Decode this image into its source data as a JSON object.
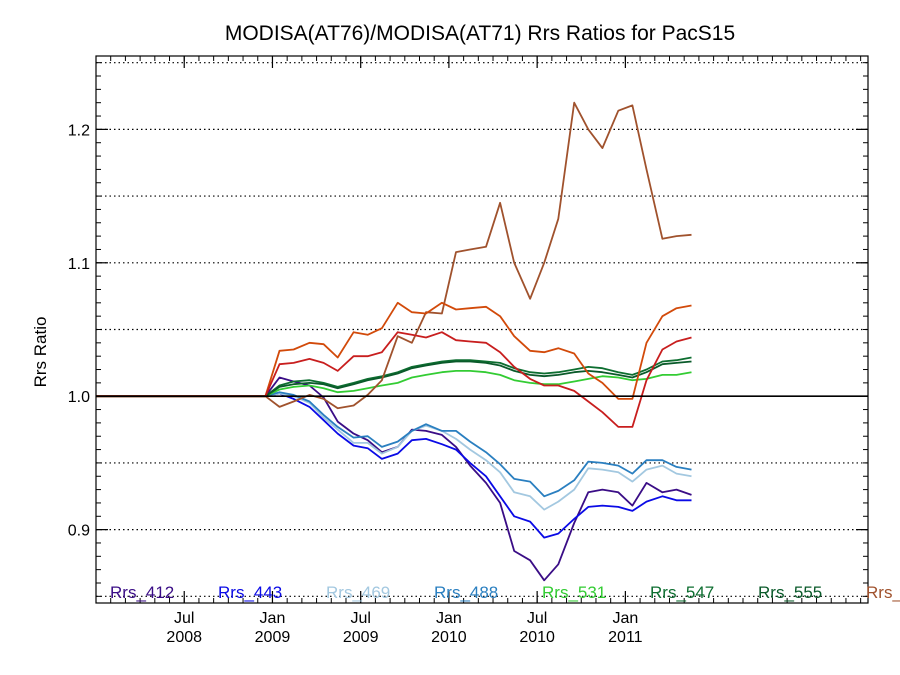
{
  "chart_data": {
    "type": "line",
    "title": "MODISA(AT76)/MODISA(AT71)  Rrs Ratios for PacS15",
    "xlabel": "",
    "ylabel": "Rrs Ratio",
    "xlim": [
      2007.0,
      2011.375
    ],
    "ylim": [
      0.845,
      1.255
    ],
    "x_ticks": [
      {
        "value": 2007.5,
        "month": "Jul",
        "year": "2008"
      },
      {
        "value": 2008.0,
        "month": "Jan",
        "year": "2009"
      },
      {
        "value": 2008.5,
        "month": "Jul",
        "year": "2009"
      },
      {
        "value": 2009.0,
        "month": "Jan",
        "year": "2010"
      },
      {
        "value": 2009.5,
        "month": "Jul",
        "year": "2010"
      },
      {
        "value": 2010.0,
        "month": "Jan",
        "year": "2011"
      }
    ],
    "y_ticks": [
      {
        "value": 0.9,
        "label": "0.9"
      },
      {
        "value": 1.0,
        "label": "1.0"
      },
      {
        "value": 1.1,
        "label": "1.1"
      },
      {
        "value": 1.2,
        "label": "1.2"
      }
    ],
    "gridlines_dotted": [
      0.85,
      0.9,
      0.95,
      1.05,
      1.1,
      1.15,
      1.2,
      1.25
    ],
    "reference_line": 1.0,
    "legend_placement": "bottom",
    "x_start": 2007.0,
    "x_flat_end": 2007.96,
    "x": [
      2007.96,
      2008.04,
      2008.12,
      2008.21,
      2008.29,
      2008.37,
      2008.46,
      2008.54,
      2008.62,
      2008.71,
      2008.79,
      2008.87,
      2008.96,
      2009.04,
      2009.12,
      2009.21,
      2009.29,
      2009.37,
      2009.46,
      2009.54,
      2009.62,
      2009.71,
      2009.79,
      2009.87,
      2009.96,
      2010.04,
      2010.12,
      2010.21,
      2010.29,
      2010.375
    ],
    "series": [
      {
        "name": "Rrs_412",
        "color": "#3a0d86",
        "values": [
          1.0,
          1.014,
          1.011,
          1.008,
          0.999,
          0.981,
          0.972,
          0.967,
          0.958,
          0.962,
          0.975,
          0.974,
          0.971,
          0.962,
          0.948,
          0.935,
          0.92,
          0.884,
          0.877,
          0.862,
          0.874,
          0.905,
          0.928,
          0.93,
          0.928,
          0.918,
          0.935,
          0.928,
          0.93,
          0.926
        ]
      },
      {
        "name": "Rrs_443",
        "color": "#0a0ae6",
        "values": [
          1.0,
          1.002,
          0.998,
          0.992,
          0.982,
          0.972,
          0.963,
          0.961,
          0.953,
          0.957,
          0.967,
          0.968,
          0.964,
          0.96,
          0.95,
          0.94,
          0.925,
          0.91,
          0.906,
          0.894,
          0.897,
          0.908,
          0.917,
          0.918,
          0.917,
          0.914,
          0.921,
          0.925,
          0.922,
          0.922
        ]
      },
      {
        "name": "Rrs_469",
        "color": "#a3c8e0",
        "values": [
          1.0,
          1.002,
          1.0,
          0.995,
          0.984,
          0.975,
          0.965,
          0.965,
          0.957,
          0.962,
          0.974,
          0.978,
          0.974,
          0.968,
          0.96,
          0.952,
          0.943,
          0.928,
          0.925,
          0.915,
          0.921,
          0.93,
          0.946,
          0.945,
          0.943,
          0.936,
          0.945,
          0.948,
          0.942,
          0.94
        ]
      },
      {
        "name": "Rrs_488",
        "color": "#2a7fc0",
        "values": [
          1.0,
          1.003,
          1.001,
          0.996,
          0.986,
          0.977,
          0.969,
          0.97,
          0.962,
          0.966,
          0.974,
          0.979,
          0.974,
          0.974,
          0.966,
          0.958,
          0.949,
          0.938,
          0.936,
          0.925,
          0.929,
          0.937,
          0.951,
          0.95,
          0.948,
          0.942,
          0.952,
          0.952,
          0.947,
          0.945
        ]
      },
      {
        "name": "Rrs_531",
        "color": "#33cc33",
        "values": [
          1.0,
          1.005,
          1.007,
          1.008,
          1.006,
          1.003,
          1.004,
          1.006,
          1.008,
          1.01,
          1.014,
          1.016,
          1.018,
          1.019,
          1.019,
          1.018,
          1.016,
          1.012,
          1.01,
          1.009,
          1.009,
          1.011,
          1.013,
          1.015,
          1.014,
          1.012,
          1.013,
          1.016,
          1.016,
          1.018
        ]
      },
      {
        "name": "Rrs_547",
        "color": "#0d6e30",
        "values": [
          1.0,
          1.008,
          1.011,
          1.012,
          1.01,
          1.007,
          1.01,
          1.013,
          1.015,
          1.018,
          1.022,
          1.024,
          1.026,
          1.027,
          1.027,
          1.026,
          1.025,
          1.021,
          1.018,
          1.017,
          1.018,
          1.02,
          1.022,
          1.021,
          1.018,
          1.016,
          1.02,
          1.026,
          1.027,
          1.029
        ]
      },
      {
        "name": "Rrs_555",
        "color": "#0a5a2a",
        "values": [
          1.0,
          1.007,
          1.009,
          1.01,
          1.009,
          1.006,
          1.009,
          1.012,
          1.014,
          1.017,
          1.021,
          1.023,
          1.025,
          1.026,
          1.026,
          1.025,
          1.023,
          1.019,
          1.016,
          1.015,
          1.016,
          1.018,
          1.019,
          1.018,
          1.016,
          1.014,
          1.018,
          1.024,
          1.025,
          1.026
        ]
      },
      {
        "name": "Rrs_",
        "color": "#a0522d",
        "values": [
          1.0,
          0.992,
          0.996,
          1.001,
          0.998,
          0.991,
          0.993,
          1.001,
          1.012,
          1.045,
          1.04,
          1.063,
          1.062,
          1.108,
          1.11,
          1.112,
          1.145,
          1.1,
          1.073,
          1.1,
          1.133,
          1.22,
          1.2,
          1.186,
          1.214,
          1.218,
          1.17,
          1.118,
          1.12,
          1.121
        ]
      },
      {
        "name": "",
        "color": "#d24a0a",
        "values": [
          1.0,
          1.034,
          1.035,
          1.04,
          1.039,
          1.029,
          1.048,
          1.046,
          1.051,
          1.07,
          1.063,
          1.062,
          1.07,
          1.065,
          1.066,
          1.067,
          1.06,
          1.045,
          1.034,
          1.033,
          1.036,
          1.032,
          1.017,
          1.01,
          0.998,
          0.998,
          1.04,
          1.06,
          1.066,
          1.068
        ]
      },
      {
        "name": "",
        "color": "#c81e1e",
        "values": [
          1.0,
          1.024,
          1.025,
          1.028,
          1.025,
          1.019,
          1.03,
          1.03,
          1.033,
          1.048,
          1.046,
          1.044,
          1.048,
          1.042,
          1.041,
          1.04,
          1.033,
          1.022,
          1.013,
          1.008,
          1.008,
          1.004,
          0.996,
          0.988,
          0.977,
          0.977,
          1.012,
          1.035,
          1.041,
          1.044
        ]
      }
    ]
  }
}
